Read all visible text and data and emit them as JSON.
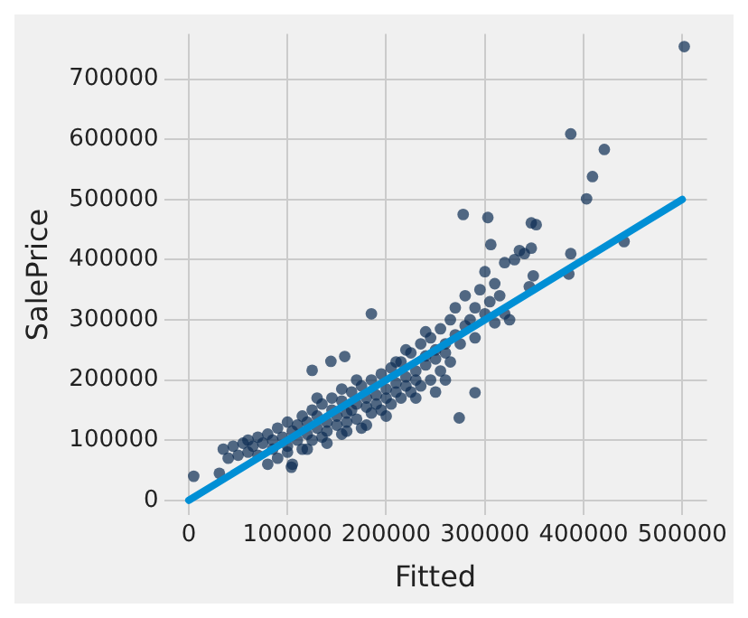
{
  "chart_data": {
    "type": "scatter",
    "xlabel": "Fitted",
    "ylabel": "SalePrice",
    "xlim": [
      -25000,
      525000
    ],
    "ylim": [
      -25000,
      775000
    ],
    "xticks": [
      0,
      100000,
      200000,
      300000,
      400000,
      500000
    ],
    "yticks": [
      0,
      100000,
      200000,
      300000,
      400000,
      500000,
      600000,
      700000
    ],
    "grid": true,
    "series": [
      {
        "marker": "circle",
        "color": "#0b2c52",
        "x": [
          502000,
          387000,
          421000,
          409000,
          403000,
          441000,
          387000,
          385000,
          278000,
          303000,
          347000,
          352000,
          306000,
          347000,
          349000,
          5000,
          31000,
          274000,
          290000,
          185000,
          125000,
          144000,
          158000,
          104000,
          35000,
          40000,
          45000,
          50000,
          55000,
          60000,
          60000,
          65000,
          70000,
          70000,
          75000,
          80000,
          80000,
          85000,
          85000,
          90000,
          90000,
          95000,
          100000,
          100000,
          105000,
          105000,
          110000,
          110000,
          115000,
          115000,
          120000,
          120000,
          125000,
          125000,
          130000,
          130000,
          135000,
          135000,
          140000,
          140000,
          145000,
          145000,
          150000,
          150000,
          155000,
          155000,
          160000,
          160000,
          165000,
          165000,
          170000,
          170000,
          175000,
          175000,
          180000,
          180000,
          185000,
          185000,
          190000,
          190000,
          195000,
          195000,
          200000,
          200000,
          205000,
          205000,
          210000,
          210000,
          215000,
          215000,
          220000,
          220000,
          225000,
          225000,
          230000,
          230000,
          235000,
          235000,
          240000,
          240000,
          245000,
          245000,
          250000,
          250000,
          255000,
          255000,
          260000,
          260000,
          265000,
          265000,
          270000,
          270000,
          275000,
          280000,
          280000,
          285000,
          290000,
          290000,
          295000,
          300000,
          300000,
          305000,
          310000,
          310000,
          315000,
          320000,
          320000,
          325000,
          330000,
          335000,
          340000,
          345000,
          250000,
          260000,
          230000,
          200000,
          180000,
          160000,
          140000,
          120000,
          100000,
          130000,
          210000,
          220000,
          240000,
          170000,
          155000
        ],
        "values": [
          754000,
          609000,
          583000,
          538000,
          501000,
          430000,
          410000,
          376000,
          475000,
          470000,
          461000,
          458000,
          425000,
          419000,
          373000,
          40000,
          45000,
          137000,
          179000,
          310000,
          216000,
          231000,
          239000,
          55000,
          85000,
          70000,
          90000,
          75000,
          95000,
          80000,
          100000,
          90000,
          105000,
          75000,
          95000,
          110000,
          60000,
          100000,
          85000,
          120000,
          70000,
          105000,
          130000,
          90000,
          115000,
          60000,
          125000,
          100000,
          140000,
          85000,
          110000,
          130000,
          150000,
          100000,
          120000,
          140000,
          160000,
          105000,
          130000,
          115000,
          150000,
          170000,
          125000,
          140000,
          165000,
          110000,
          145000,
          130000,
          180000,
          150000,
          135000,
          160000,
          190000,
          120000,
          155000,
          170000,
          200000,
          145000,
          175000,
          160000,
          210000,
          150000,
          185000,
          170000,
          220000,
          160000,
          195000,
          180000,
          230000,
          170000,
          205000,
          190000,
          245000,
          180000,
          215000,
          200000,
          260000,
          190000,
          225000,
          240000,
          270000,
          200000,
          235000,
          250000,
          285000,
          215000,
          260000,
          245000,
          300000,
          230000,
          275000,
          320000,
          260000,
          290000,
          340000,
          300000,
          320000,
          270000,
          350000,
          310000,
          380000,
          330000,
          360000,
          295000,
          340000,
          395000,
          310000,
          300000,
          400000,
          415000,
          410000,
          355000,
          180000,
          200000,
          170000,
          140000,
          125000,
          115000,
          95000,
          85000,
          80000,
          170000,
          230000,
          250000,
          280000,
          200000,
          185000
        ]
      },
      {
        "type": "line",
        "color": "#008fd5",
        "x": [
          0,
          500000
        ],
        "values": [
          0,
          500000
        ]
      }
    ]
  }
}
